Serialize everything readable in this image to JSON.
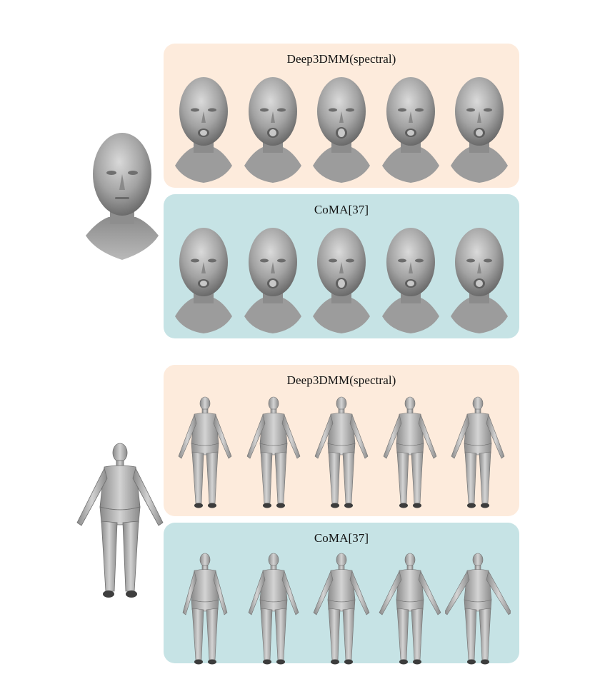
{
  "panels": [
    {
      "title": "Deep3DMM(spectral)",
      "kind": "faces",
      "count": 5
    },
    {
      "title": "CoMA[37]",
      "kind": "faces",
      "count": 5
    },
    {
      "title": "Deep3DMM(spectral)",
      "kind": "bodies",
      "count": 5
    },
    {
      "title": "CoMA[37]",
      "kind": "bodies",
      "count": 5
    }
  ],
  "reference_face_label": "",
  "reference_body_label": "",
  "colors": {
    "peach_panel": "#fdebdc",
    "teal_panel": "#c6e3e5",
    "mesh_gray": "#9a9a9a"
  }
}
